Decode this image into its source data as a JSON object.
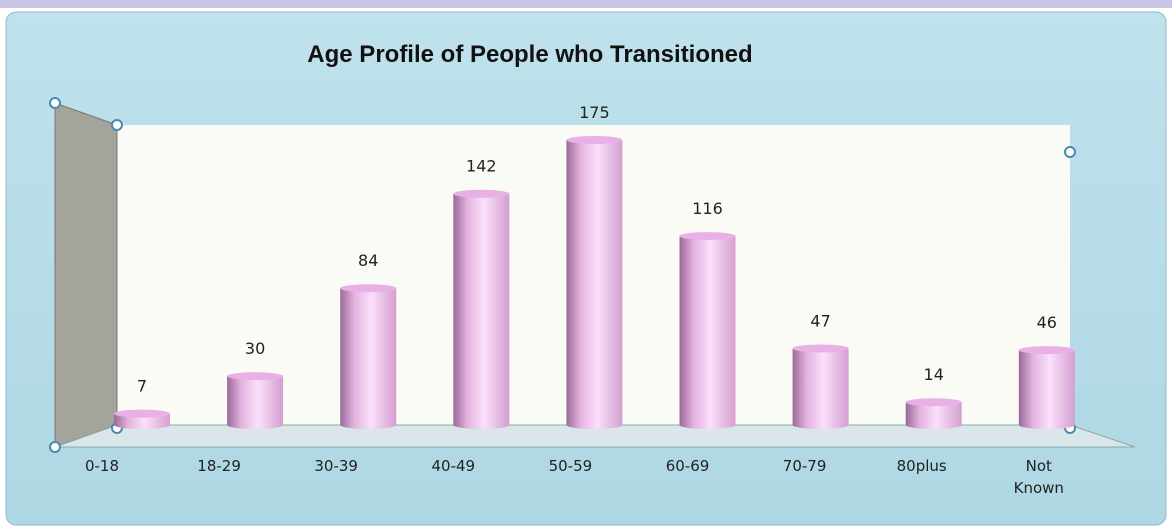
{
  "chart_data": {
    "type": "bar",
    "title": "Age Profile of People who Transitioned",
    "categories": [
      "0-18",
      "18-29",
      "30-39",
      "40-49",
      "50-59",
      "60-69",
      "70-79",
      "80plus",
      "Not Known"
    ],
    "values": [
      7,
      30,
      84,
      142,
      175,
      116,
      47,
      14,
      46
    ],
    "color": "#e8b0e4"
  }
}
